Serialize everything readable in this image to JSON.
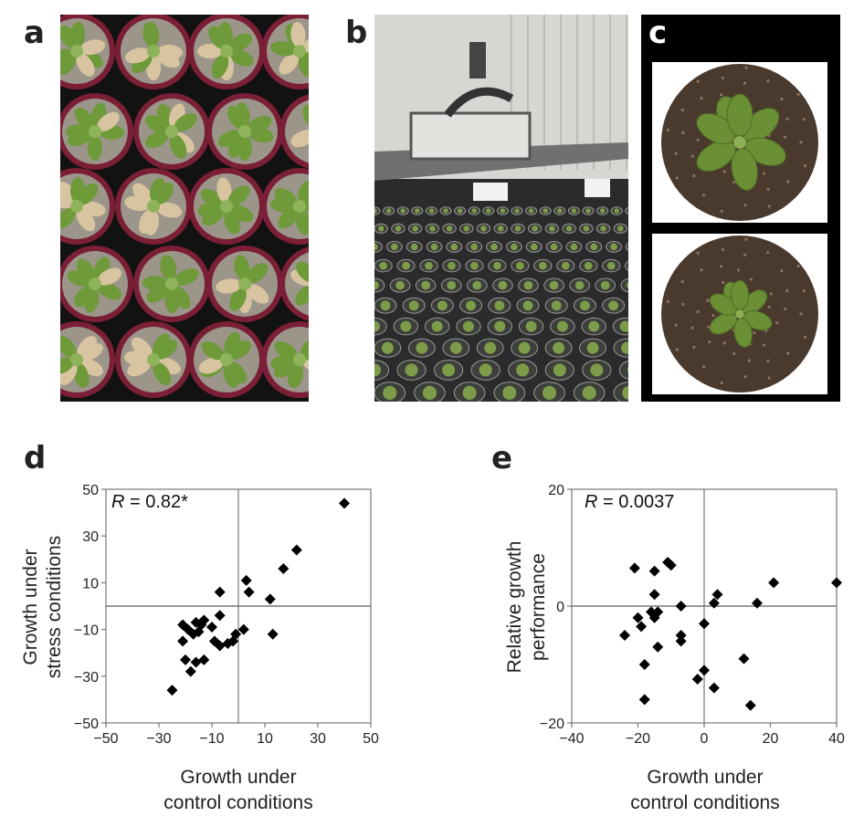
{
  "panels": {
    "a": {
      "letter": "a"
    },
    "b": {
      "letter": "b"
    },
    "c": {
      "letter": "c"
    },
    "d": {
      "letter": "d"
    },
    "e": {
      "letter": "e"
    }
  },
  "colors": {
    "plant_green": "#6f9a3a",
    "pot_red": "#7a1f35",
    "soil": "#4a3a2e",
    "marker": "#000000",
    "axis": "#777777"
  },
  "chart_data": [
    {
      "type": "scatter",
      "panel": "d",
      "annotation_prefix": "R",
      "annotation_value": " = 0.82*",
      "xlabel_lines": [
        "Growth under",
        "control conditions"
      ],
      "ylabel_lines": [
        "Growth under",
        "stress conditions"
      ],
      "xlim": [
        -50,
        50
      ],
      "ylim": [
        -50,
        50
      ],
      "xticks": [
        -50,
        -30,
        -10,
        10,
        30,
        50
      ],
      "xtick_labels": [
        "−50",
        "−30",
        "−10",
        "10",
        "30",
        "50"
      ],
      "yticks": [
        50,
        30,
        10,
        -10,
        -30,
        -50
      ],
      "ytick_labels": [
        "50",
        "30",
        "10",
        "−10",
        "−30",
        "−50"
      ],
      "grid": false,
      "marker": "diamond",
      "points": [
        {
          "x": 40,
          "y": 44
        },
        {
          "x": 22,
          "y": 24
        },
        {
          "x": 17,
          "y": 16
        },
        {
          "x": 12,
          "y": 3
        },
        {
          "x": 13,
          "y": -12
        },
        {
          "x": 3,
          "y": 11
        },
        {
          "x": 4,
          "y": 6
        },
        {
          "x": -7,
          "y": 6
        },
        {
          "x": 2,
          "y": -10
        },
        {
          "x": -1,
          "y": -12
        },
        {
          "x": -2,
          "y": -15
        },
        {
          "x": -4,
          "y": -16
        },
        {
          "x": -7,
          "y": -17
        },
        {
          "x": -7,
          "y": -4
        },
        {
          "x": -9,
          "y": -15
        },
        {
          "x": -10,
          "y": -9
        },
        {
          "x": -13,
          "y": -6
        },
        {
          "x": -14,
          "y": -8
        },
        {
          "x": -15,
          "y": -11
        },
        {
          "x": -16,
          "y": -7
        },
        {
          "x": -17,
          "y": -12
        },
        {
          "x": -19,
          "y": -10
        },
        {
          "x": -21,
          "y": -15
        },
        {
          "x": -20,
          "y": -23
        },
        {
          "x": -18,
          "y": -28
        },
        {
          "x": -16,
          "y": -24
        },
        {
          "x": -13,
          "y": -23
        },
        {
          "x": -25,
          "y": -36
        },
        {
          "x": -21,
          "y": -8
        }
      ]
    },
    {
      "type": "scatter",
      "panel": "e",
      "annotation_prefix": "R",
      "annotation_value": " = 0.0037",
      "xlabel_lines": [
        "Growth under",
        "control conditions"
      ],
      "ylabel_lines": [
        "Relative growth",
        "performance"
      ],
      "xlim": [
        -40,
        40
      ],
      "ylim": [
        -20,
        20
      ],
      "xticks": [
        -40,
        -20,
        0,
        20,
        40
      ],
      "xtick_labels": [
        "−40",
        "−20",
        "0",
        "20",
        "40"
      ],
      "yticks": [
        20,
        0,
        -20
      ],
      "ytick_labels": [
        "20",
        "0",
        "−20"
      ],
      "grid": false,
      "marker": "diamond",
      "points": [
        {
          "x": 40,
          "y": 4
        },
        {
          "x": 21,
          "y": 4
        },
        {
          "x": 16,
          "y": 0.5
        },
        {
          "x": 4,
          "y": 2
        },
        {
          "x": 3,
          "y": 0.5
        },
        {
          "x": 12,
          "y": -9
        },
        {
          "x": 14,
          "y": -17
        },
        {
          "x": 3,
          "y": -14
        },
        {
          "x": 0,
          "y": -3
        },
        {
          "x": 0,
          "y": -11
        },
        {
          "x": -2,
          "y": -12.5
        },
        {
          "x": -7,
          "y": 0
        },
        {
          "x": -7,
          "y": -5
        },
        {
          "x": -7,
          "y": -6
        },
        {
          "x": -10,
          "y": 7
        },
        {
          "x": -11,
          "y": 7.5
        },
        {
          "x": -15,
          "y": 6
        },
        {
          "x": -15,
          "y": 2
        },
        {
          "x": -14,
          "y": -1
        },
        {
          "x": -15,
          "y": -2
        },
        {
          "x": -14,
          "y": -7
        },
        {
          "x": -16,
          "y": -1
        },
        {
          "x": -19,
          "y": -3.5
        },
        {
          "x": -18,
          "y": -10
        },
        {
          "x": -18,
          "y": -16
        },
        {
          "x": -20,
          "y": -2
        },
        {
          "x": -21,
          "y": 6.5
        },
        {
          "x": -24,
          "y": -5
        }
      ]
    }
  ]
}
